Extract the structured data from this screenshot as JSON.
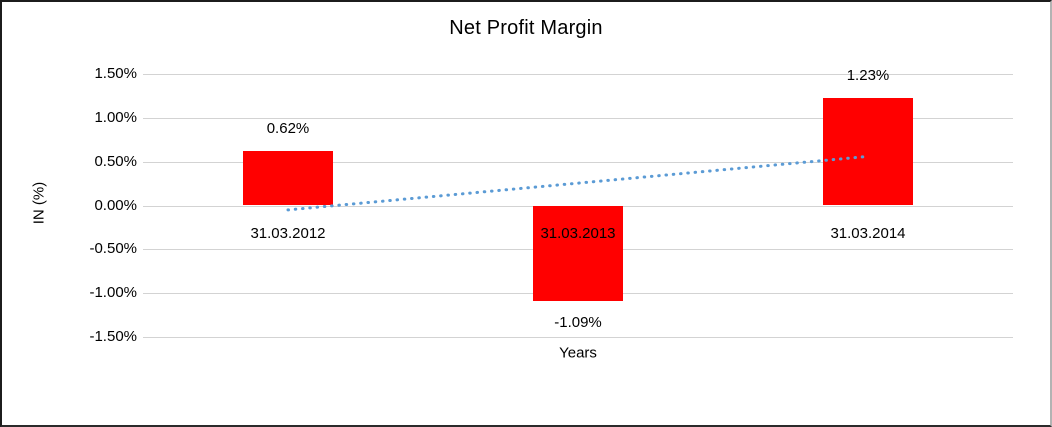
{
  "chart_data": {
    "type": "bar",
    "title": "Net Profit Margin",
    "xlabel": "Years",
    "ylabel": "IN (%)",
    "categories": [
      "31.03.2012",
      "31.03.2013",
      "31.03.2014"
    ],
    "values": [
      0.62,
      -1.09,
      1.23
    ],
    "data_labels": [
      "0.62%",
      "-1.09%",
      "1.23%"
    ],
    "yticks": [
      1.5,
      1.0,
      0.5,
      0.0,
      -0.5,
      -1.0,
      -1.5
    ],
    "ytick_labels": [
      "1.50%",
      "1.00%",
      "0.50%",
      "0.00%",
      "-0.50%",
      "-1.00%",
      "-1.50%"
    ],
    "ylim": [
      -1.5,
      1.5
    ],
    "grid": true,
    "legend": "none",
    "bar_color": "#FF0000",
    "gridline_color": "#d3d3d3",
    "trendline": {
      "type": "linear",
      "style": "dotted",
      "color": "#5B9BD5",
      "start_value": -0.05,
      "end_value": 0.56
    }
  }
}
